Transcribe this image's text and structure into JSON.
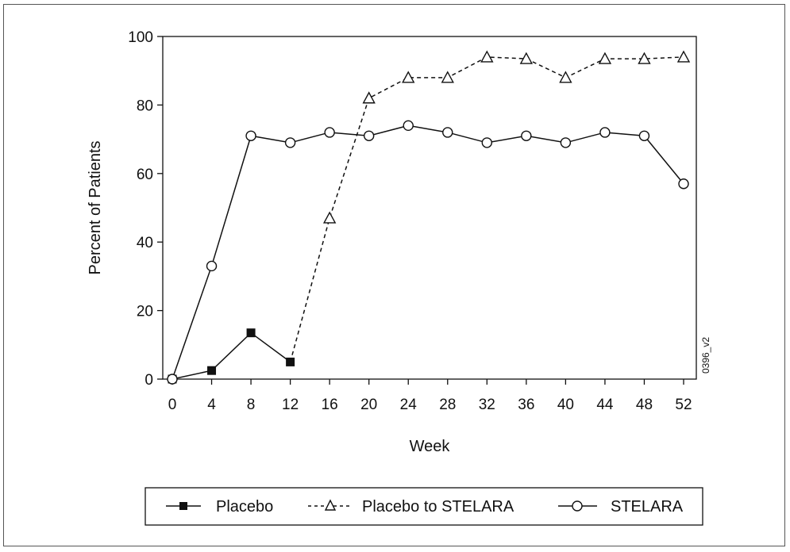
{
  "chart_data": {
    "type": "line",
    "title": "",
    "xlabel": "Week",
    "ylabel": "Percent of Patients",
    "xlim": [
      0,
      52
    ],
    "ylim": [
      0,
      100
    ],
    "x_ticks": [
      0,
      4,
      8,
      12,
      16,
      20,
      24,
      28,
      32,
      36,
      40,
      44,
      48,
      52
    ],
    "y_ticks": [
      0,
      20,
      40,
      60,
      80,
      100
    ],
    "grid": false,
    "legend_position": "bottom",
    "figure_code": "0396_v2",
    "series": [
      {
        "name": "Placebo",
        "legend_text": "Placebo",
        "marker": "filled-square",
        "line_style": "solid",
        "x": [
          0,
          4,
          8,
          12
        ],
        "y": [
          0,
          2.5,
          13.5,
          5
        ]
      },
      {
        "name": "Placebo to STELARA",
        "legend_text": "Placebo to STELARA",
        "marker": "open-triangle",
        "line_style": "dashed",
        "x": [
          12,
          16,
          20,
          24,
          28,
          32,
          36,
          40,
          44,
          48,
          52
        ],
        "y": [
          5,
          47,
          82,
          88,
          88,
          94,
          93.5,
          88,
          93.5,
          93.5,
          94
        ]
      },
      {
        "name": "STELARA",
        "legend_text": "STELARA",
        "marker": "open-circle",
        "line_style": "solid",
        "x": [
          0,
          4,
          8,
          12,
          16,
          20,
          24,
          28,
          32,
          36,
          40,
          44,
          48,
          52
        ],
        "y": [
          0,
          33,
          71,
          69,
          72,
          71,
          74,
          72,
          69,
          71,
          69,
          72,
          71,
          57
        ]
      }
    ]
  }
}
